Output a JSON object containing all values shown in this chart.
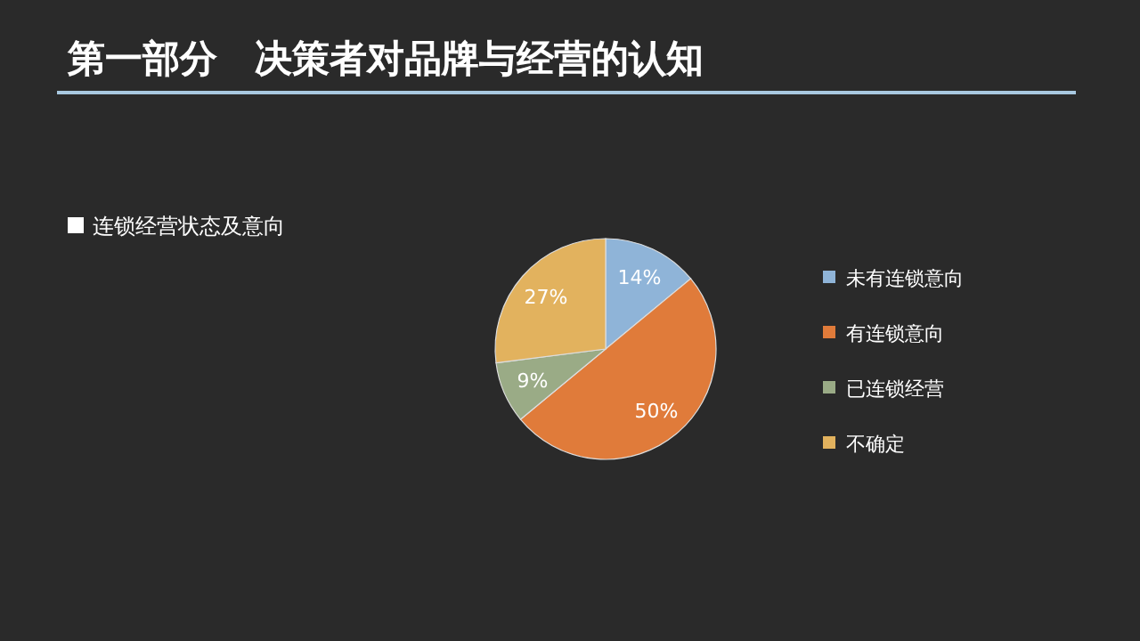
{
  "chart_data": {
    "type": "pie",
    "title": "第一部分　决策者对品牌与经营的认知",
    "subtitle": "连锁经营状态及意向",
    "categories": [
      "未有连锁意向",
      "有连锁意向",
      "已连锁经营",
      "不确定"
    ],
    "values": [
      14,
      50,
      9,
      27
    ],
    "colors": [
      "#8fb4d8",
      "#e07b3a",
      "#9aab86",
      "#e2b25e"
    ],
    "value_labels": [
      "14%",
      "50%",
      "9%",
      "27%"
    ],
    "legend": "right"
  }
}
